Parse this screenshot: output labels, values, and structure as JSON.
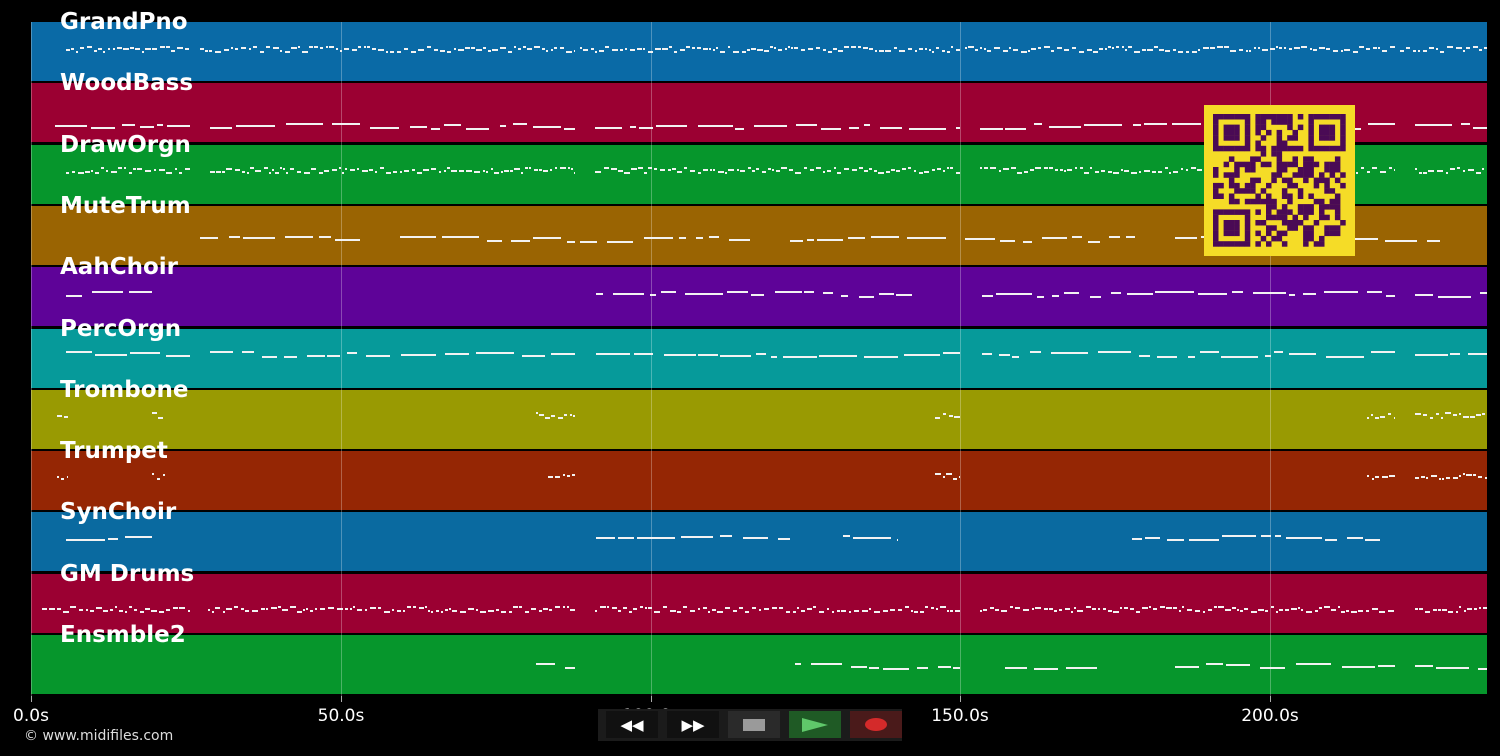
{
  "tracks": [
    {
      "name": "GrandPno",
      "color": "#0a6aa6"
    },
    {
      "name": "WoodBass",
      "color": "#9b0032"
    },
    {
      "name": "DrawOrgn",
      "color": "#06962c"
    },
    {
      "name": "MuteTrum",
      "color": "#9a6402"
    },
    {
      "name": "AahChoir",
      "color": "#5e0398"
    },
    {
      "name": "PercOrgn",
      "color": "#069a9a"
    },
    {
      "name": "Trombone",
      "color": "#999a02"
    },
    {
      "name": "Trumpet",
      "color": "#952604"
    },
    {
      "name": "SynChoir",
      "color": "#0a6aa0"
    },
    {
      "name": "GM Drums",
      "color": "#9b0032"
    },
    {
      "name": "Ensmble2",
      "color": "#06962c"
    }
  ],
  "timeline": {
    "ticks": [
      "0.0s",
      "50.0s",
      "100.0s",
      "150.0s",
      "200.0s"
    ],
    "tick_seconds": [
      0,
      50,
      100,
      150,
      200
    ],
    "end_seconds": 235
  },
  "copyright": "© www.midifiles.com",
  "transport": {
    "rewind_icon": "rewind-icon",
    "forward_icon": "fast-forward-icon",
    "stop_icon": "stop-icon",
    "play_icon": "play-icon",
    "record_icon": "record-icon",
    "play_color": "#1f5a25",
    "record_color": "#4a1a1a"
  },
  "qr_colors": {
    "fg": "#4a0a55",
    "bg": "#f5dc27"
  }
}
